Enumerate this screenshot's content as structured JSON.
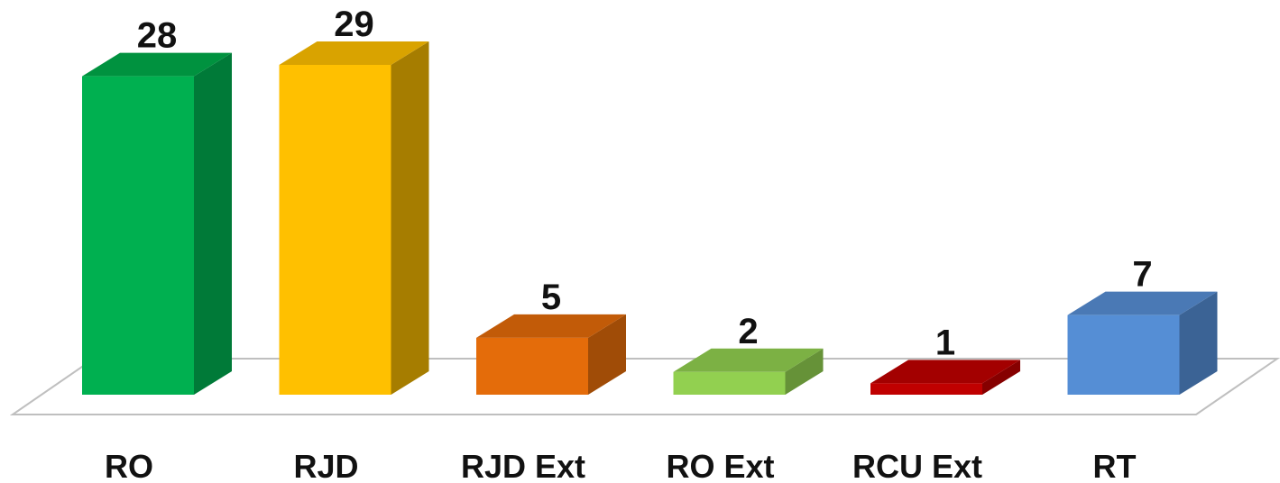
{
  "chart_data": {
    "type": "bar",
    "style": "3d-column",
    "categories": [
      "RO",
      "RJD",
      "RJD Ext",
      "RO Ext",
      "RCU Ext",
      "RT"
    ],
    "values": [
      28,
      29,
      5,
      2,
      1,
      7
    ],
    "data_labels": [
      "28",
      "29",
      "5",
      "2",
      "1",
      "7"
    ],
    "colors": [
      "#00b050",
      "#ffc000",
      "#e46c0a",
      "#92d050",
      "#c00000",
      "#558ed5"
    ],
    "side_colors": [
      "#007a38",
      "#a67d00",
      "#a04c07",
      "#669238",
      "#860000",
      "#3b6395"
    ],
    "top_colors": [
      "#00923f",
      "#d9a300",
      "#c25b08",
      "#7cb144",
      "#a30000",
      "#4a79b5"
    ],
    "floor_color": "#ffffff",
    "floor_border": "#bfbfbf",
    "ylim": [
      0,
      29
    ],
    "grid": false,
    "legend": "none",
    "title": "",
    "xlabel": "",
    "ylabel": ""
  }
}
